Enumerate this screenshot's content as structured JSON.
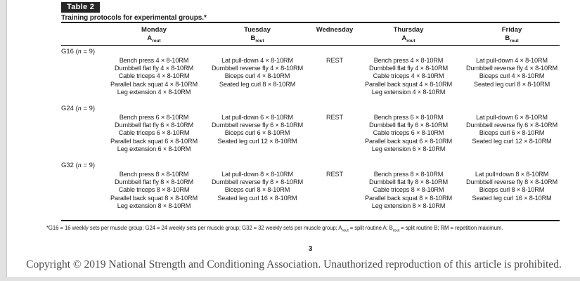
{
  "table": {
    "tag": "Table 2",
    "caption": "Training protocols for experimental groups.*",
    "header": {
      "days": [
        "Monday",
        "Tuesday",
        "Wednesday",
        "Thursday",
        "Friday"
      ],
      "routines": [
        {
          "main": "A",
          "sub": "rout"
        },
        {
          "main": "B",
          "sub": "rout"
        },
        null,
        {
          "main": "A",
          "sub": "rout"
        },
        {
          "main": "B",
          "sub": "rout"
        }
      ]
    },
    "groups": [
      {
        "label_prefix": "G16 (",
        "label_n": "n",
        "label_suffix": " = 9)",
        "days": [
          [
            "Bench press 4 × 8-10RM",
            "Dumbbell flat fly 4 × 8-10RM",
            "Cable triceps 4 × 8-10RM",
            "Parallel back squat 4 × 8-10RM",
            "Leg extension 4 × 8-10RM"
          ],
          [
            "Lat pull-down 4 × 8-10RM",
            "Dumbbell reverse fly 4 × 8-10RM",
            "Biceps curl 4 × 8-10RM",
            "Seated leg curl 8 × 8-10RM"
          ],
          [
            "REST"
          ],
          [
            "Bench press 4 × 8-10RM",
            "Dumbbell flat fly 4 × 8-10RM",
            "Cable triceps 4 × 8-10RM",
            "Parallel back squat 4 × 8-10RM",
            "Leg extension 4 × 8-10RM"
          ],
          [
            "Lat pull-down 4 × 8-10RM",
            "Dumbbell reverse fly 4 × 8-10RM",
            "Biceps curl 4 × 8-10RM",
            "Seated leg curl 8 × 8-10RM"
          ]
        ]
      },
      {
        "label_prefix": "G24 (",
        "label_n": "n",
        "label_suffix": " = 9)",
        "days": [
          [
            "Bench press 6 × 8-10RM",
            "Dumbbell flat fly 6 × 8-10RM",
            "Cable triceps 6 × 8-10RM",
            "Parallel back squat 6 × 8-10RM",
            "Leg extension 6 × 8-10RM"
          ],
          [
            "Lat pull-down 6 × 8-10RM",
            "Dumbbell reverse fly 6 × 8-10RM",
            "Biceps curl 6 × 8-10RM",
            "Seated leg curl 12 × 8-10RM"
          ],
          [
            "REST"
          ],
          [
            "Bench press 6 × 8-10RM",
            "Dumbbell flat fly 6 × 8-10RM",
            "Cable triceps 6 × 8-10RM",
            "Parallel back squat 6 × 8-10RM",
            "Leg extension 6 × 8-10RM"
          ],
          [
            "Lat pull-down 6 × 8-10RM",
            "Dumbbell reverse fly 6 × 8-10RM",
            "Biceps curl 6 × 8-10RM",
            "Seated leg curl 12 × 8-10RM"
          ]
        ]
      },
      {
        "label_prefix": "G32 (",
        "label_n": "n",
        "label_suffix": " = 9)",
        "days": [
          [
            "Bench press 8 × 8-10RM",
            "Dumbbell flat fly 8 × 8-10RM",
            "Cable triceps 8 × 8-10RM",
            "Parallel back squat 8 × 8-10RM",
            "Leg extension 8 × 8-10RM"
          ],
          [
            "Lat pull-down 8 × 8-10RM",
            "Dumbbell reverse fly 8 × 8-10RM",
            "Biceps curl 8 × 8-10RM",
            "Seated leg curl 16 × 8-10RM"
          ],
          [
            "REST"
          ],
          [
            "Bench press 8 × 8-10RM",
            "Dumbbell flat fly 8 × 8-10RM",
            "Cable triceps 8 × 8-10RM",
            "Parallel back squat 8 × 8-10RM",
            "Leg extension 8 × 8-10RM"
          ],
          [
            "Lat pull+down 8 × 8-10RM",
            "Dumbbell reverse fly 8 × 8-10RM",
            "Biceps curl 8 × 8-10RM",
            "Seated leg curl 16 × 8-10RM"
          ]
        ]
      }
    ],
    "footnote": {
      "part1": "*G16 = 16 weekly sets per muscle group; G24 = 24 weekly sets per muscle group; G32 = 32 weekly sets per muscle group; A",
      "sub1": "rout",
      "part2": " = split routine A; B",
      "sub2": "rout",
      "part3": " = split routine B; RM = repetition maximum."
    }
  },
  "page": {
    "number": "3",
    "copyright": "Copyright © 2019 National Strength and Conditioning Association. Unauthorized reproduction of this article is prohibited."
  },
  "colors": {
    "table_tag_bg": "#262626",
    "text": "#1c1c1c",
    "copyright_text": "#4a4a4a"
  }
}
